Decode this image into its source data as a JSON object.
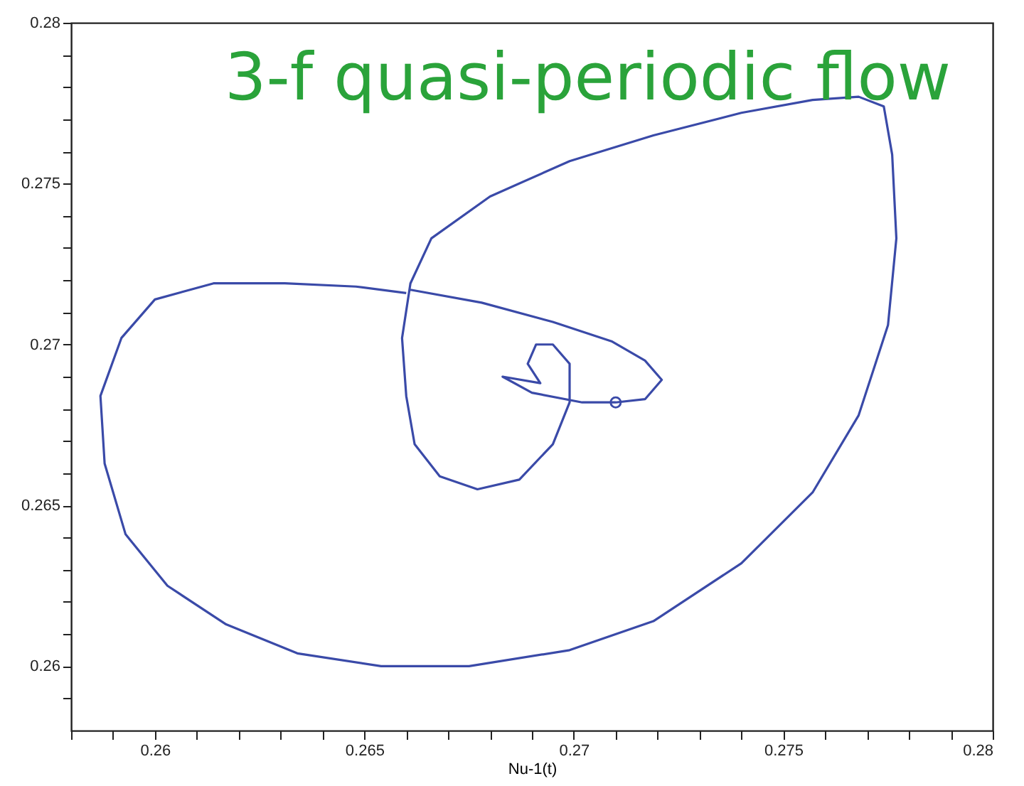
{
  "chart_data": {
    "type": "line",
    "title": "3-f quasi-periodic flow",
    "xlabel": "Nu-1(t)",
    "series": [
      {
        "color": "#3a4aa8",
        "x": [
          0.266,
          0.2648,
          0.2631,
          0.2614,
          0.26,
          0.2592,
          0.2587,
          0.2588,
          0.2593,
          0.2603,
          0.2617,
          0.2634,
          0.2654,
          0.2675,
          0.2699,
          0.2719,
          0.274,
          0.2757,
          0.2768,
          0.2775,
          0.2777,
          0.2776,
          0.2774,
          0.2768,
          0.2757,
          0.274,
          0.2719,
          0.2699,
          0.268,
          0.2666,
          0.2661,
          0.2659,
          0.266,
          0.2662,
          0.2668,
          0.2677,
          0.2687,
          0.2695,
          0.2699,
          0.2699,
          0.2695,
          0.2691,
          0.2689,
          0.2692,
          0.2683,
          0.269,
          0.2702,
          0.271,
          0.2717,
          0.2721,
          0.2717,
          0.2709,
          0.2695,
          0.2678,
          0.2661
        ],
        "values": [
          0.2716,
          0.2718,
          0.2719,
          0.2719,
          0.2714,
          0.2702,
          0.2684,
          0.2663,
          0.2641,
          0.2625,
          0.2613,
          0.2604,
          0.26,
          0.26,
          0.2605,
          0.2614,
          0.2632,
          0.2654,
          0.2678,
          0.2706,
          0.2733,
          0.2759,
          0.2774,
          0.2777,
          0.2776,
          0.2772,
          0.2765,
          0.2757,
          0.2746,
          0.2733,
          0.2719,
          0.2702,
          0.2684,
          0.2669,
          0.2659,
          0.2655,
          0.2658,
          0.2669,
          0.2682,
          0.2694,
          0.27,
          0.27,
          0.2694,
          0.2688,
          0.269,
          0.2685,
          0.2682,
          0.2682,
          0.2683,
          0.2689,
          0.2695,
          0.2701,
          0.2707,
          0.2713,
          0.2717
        ]
      },
      {
        "type": "scatter",
        "marker": "circle",
        "color": "#3a4aa8",
        "x": [
          0.271
        ],
        "values": [
          0.2682
        ]
      }
    ],
    "xlim": [
      0.258,
      0.28
    ],
    "ylim": [
      0.258,
      0.28
    ],
    "xticks": [
      {
        "value": 0.258,
        "label": null
      },
      {
        "value": 0.259,
        "label": null
      },
      0.26,
      {
        "value": 0.261,
        "label": null
      },
      {
        "value": 0.262,
        "label": null
      },
      {
        "value": 0.263,
        "label": null
      },
      {
        "value": 0.264,
        "label": null
      },
      0.265,
      {
        "value": 0.266,
        "label": null
      },
      {
        "value": 0.267,
        "label": null
      },
      {
        "value": 0.268,
        "label": null
      },
      {
        "value": 0.269,
        "label": null
      },
      0.27,
      {
        "value": 0.271,
        "label": null
      },
      {
        "value": 0.272,
        "label": null
      },
      {
        "value": 0.273,
        "label": null
      },
      {
        "value": 0.274,
        "label": null
      },
      0.275,
      {
        "value": 0.276,
        "label": null
      },
      {
        "value": 0.277,
        "label": null
      },
      {
        "value": 0.278,
        "label": null
      },
      {
        "value": 0.279,
        "label": null
      },
      0.28
    ],
    "yticks": [
      {
        "value": 0.259,
        "label": null
      },
      0.26,
      {
        "value": 0.261,
        "label": null
      },
      {
        "value": 0.262,
        "label": null
      },
      {
        "value": 0.263,
        "label": null
      },
      {
        "value": 0.264,
        "label": null
      },
      0.265,
      {
        "value": 0.266,
        "label": null
      },
      {
        "value": 0.267,
        "label": null
      },
      {
        "value": 0.268,
        "label": null
      },
      {
        "value": 0.269,
        "label": null
      },
      0.27,
      {
        "value": 0.271,
        "label": null
      },
      {
        "value": 0.272,
        "label": null
      },
      {
        "value": 0.273,
        "label": null
      },
      {
        "value": 0.274,
        "label": null
      },
      0.275,
      {
        "value": 0.276,
        "label": null
      },
      {
        "value": 0.277,
        "label": null
      },
      {
        "value": 0.278,
        "label": null
      },
      {
        "value": 0.279,
        "label": null
      },
      0.28
    ],
    "line_style": "solid"
  }
}
